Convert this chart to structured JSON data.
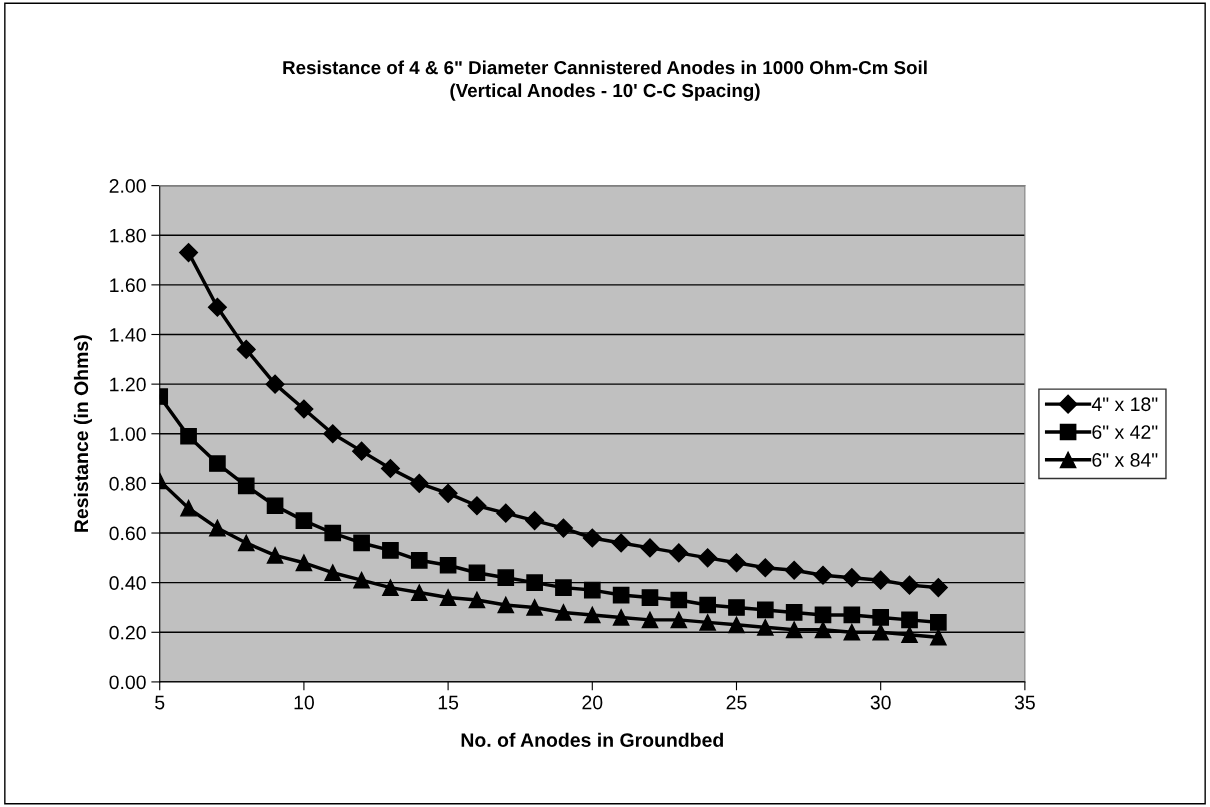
{
  "chart_data": {
    "type": "line",
    "title": "Resistance of 4 & 6\" Diameter Cannistered Anodes in 1000 Ohm-Cm Soil\n(Vertical Anodes - 10' C-C Spacing)",
    "xlabel": "No. of Anodes in Groundbed",
    "ylabel": "Resistance (in Ohms)",
    "x": [
      5,
      6,
      7,
      8,
      9,
      10,
      11,
      12,
      13,
      14,
      15,
      16,
      17,
      18,
      19,
      20,
      21,
      22,
      23,
      24,
      25,
      26,
      27,
      28,
      29,
      30,
      31,
      32
    ],
    "series": [
      {
        "name": "4\" x 18\"",
        "color": "#000000",
        "marker": "diamond",
        "values": [
          null,
          1.73,
          1.51,
          1.34,
          1.2,
          1.1,
          1.0,
          0.93,
          0.86,
          0.8,
          0.76,
          0.71,
          0.68,
          0.65,
          0.62,
          0.58,
          0.56,
          0.54,
          0.52,
          0.5,
          0.48,
          0.46,
          0.45,
          0.43,
          0.42,
          0.41,
          0.39,
          0.38
        ]
      },
      {
        "name": "6\" x 42\"",
        "color": "#000000",
        "marker": "square",
        "values": [
          1.15,
          0.99,
          0.88,
          0.79,
          0.71,
          0.65,
          0.6,
          0.56,
          0.53,
          0.49,
          0.47,
          0.44,
          0.42,
          0.4,
          0.38,
          0.37,
          0.35,
          0.34,
          0.33,
          0.31,
          0.3,
          0.29,
          0.28,
          0.27,
          0.27,
          0.26,
          0.25,
          0.24
        ]
      },
      {
        "name": "6\" x 84\"",
        "color": "#000000",
        "marker": "triangle",
        "values": [
          0.81,
          0.7,
          0.62,
          0.56,
          0.51,
          0.48,
          0.44,
          0.41,
          0.38,
          0.36,
          0.34,
          0.33,
          0.31,
          0.3,
          0.28,
          0.27,
          0.26,
          0.25,
          0.25,
          0.24,
          0.23,
          0.22,
          0.21,
          0.21,
          0.2,
          0.2,
          0.19,
          0.18
        ]
      }
    ],
    "xlim": [
      5,
      35
    ],
    "xticks": [
      5,
      10,
      15,
      20,
      25,
      30,
      35
    ],
    "ylim": [
      0,
      2.0
    ],
    "yticks": [
      {
        "value": 0,
        "label": "0.00"
      },
      {
        "value": 0.2,
        "label": "0.20"
      },
      {
        "value": 0.4,
        "label": "0.40"
      },
      {
        "value": 0.6,
        "label": "0.60"
      },
      {
        "value": 0.8,
        "label": "0.80"
      },
      {
        "value": 1.0,
        "label": "1.00"
      },
      {
        "value": 1.2,
        "label": "1.20"
      },
      {
        "value": 1.4,
        "label": "1.40"
      },
      {
        "value": 1.6,
        "label": "1.60"
      },
      {
        "value": 1.8,
        "label": "1.80"
      },
      {
        "value": 2.0,
        "label": "2.00"
      }
    ],
    "grid": "y",
    "legend": "right",
    "line_style": "solid"
  }
}
